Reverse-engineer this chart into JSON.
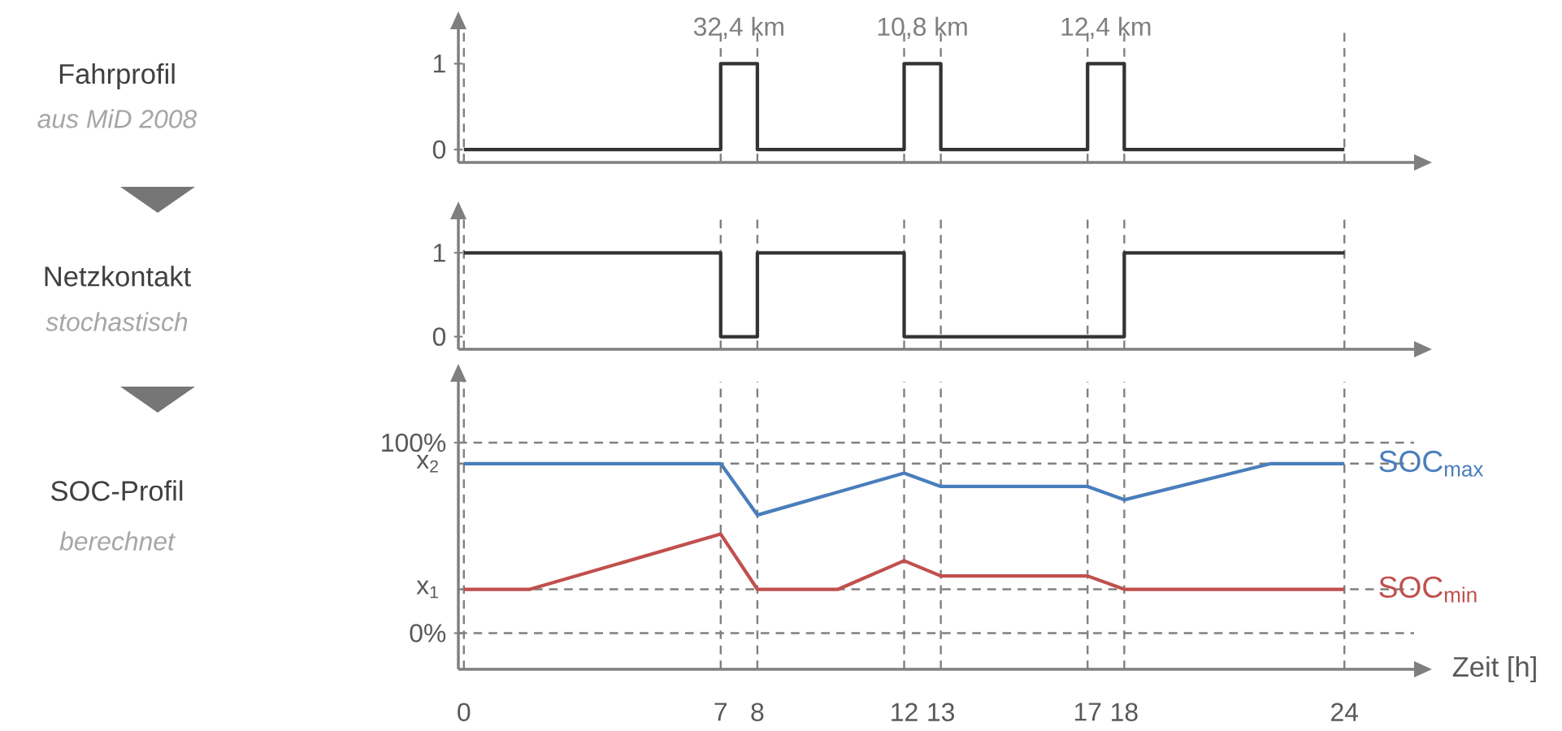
{
  "chart_data": [
    {
      "type": "step",
      "x": [
        0,
        7,
        8,
        12,
        13,
        17,
        18,
        24
      ],
      "xlim": [
        -0.15,
        25.9
      ],
      "ylim": [
        -0.15,
        1.4
      ],
      "yticks": [
        0,
        1
      ],
      "tick_labels": "y",
      "series": [
        {
          "color": "#333333",
          "values": [
            0,
            1,
            0,
            1,
            0,
            1,
            0,
            0
          ]
        }
      ],
      "annotations": [
        "Fahrprofil",
        "aus MiD 2008",
        {
          "text": "32,4 km",
          "x": 7.5,
          "y": 1
        },
        {
          "text": "10,8 km",
          "x": 12.5,
          "y": 1
        },
        {
          "text": "12,4 km",
          "x": 17.5,
          "y": 1
        }
      ],
      "ref_lines": [
        {
          "axis": "x",
          "value": 0,
          "color": "#808080",
          "line_style": "dashed"
        },
        {
          "axis": "x",
          "value": 7,
          "color": "#808080",
          "line_style": "dashed"
        },
        {
          "axis": "x",
          "value": 8,
          "color": "#808080",
          "line_style": "dashed"
        },
        {
          "axis": "x",
          "value": 12,
          "color": "#808080",
          "line_style": "dashed"
        },
        {
          "axis": "x",
          "value": 13,
          "color": "#808080",
          "line_style": "dashed"
        },
        {
          "axis": "x",
          "value": 17,
          "color": "#808080",
          "line_style": "dashed"
        },
        {
          "axis": "x",
          "value": 18,
          "color": "#808080",
          "line_style": "dashed"
        },
        {
          "axis": "x",
          "value": 24,
          "color": "#808080",
          "line_style": "dashed"
        }
      ]
    },
    {
      "type": "step",
      "annotations": [
        "Netzkontakt",
        "stochastisch"
      ],
      "x": [
        0,
        7,
        8,
        12,
        18,
        24
      ],
      "xlim": [
        -0.15,
        25.9
      ],
      "ylim": [
        -0.15,
        1.4
      ],
      "yticks": [
        0,
        1
      ],
      "tick_labels": "y",
      "series": [
        {
          "color": "#333333",
          "values": [
            1,
            0,
            1,
            0,
            1,
            1
          ]
        }
      ],
      "ref_lines": [
        {
          "axis": "x",
          "value": 0,
          "color": "#808080",
          "line_style": "dashed"
        },
        {
          "axis": "x",
          "value": 7,
          "color": "#808080",
          "line_style": "dashed"
        },
        {
          "axis": "x",
          "value": 8,
          "color": "#808080",
          "line_style": "dashed"
        },
        {
          "axis": "x",
          "value": 12,
          "color": "#808080",
          "line_style": "dashed"
        },
        {
          "axis": "x",
          "value": 13,
          "color": "#808080",
          "line_style": "dashed"
        },
        {
          "axis": "x",
          "value": 17,
          "color": "#808080",
          "line_style": "dashed"
        },
        {
          "axis": "x",
          "value": 18,
          "color": "#808080",
          "line_style": "dashed"
        },
        {
          "axis": "x",
          "value": 24,
          "color": "#808080",
          "line_style": "dashed"
        }
      ]
    },
    {
      "type": "line",
      "annotations": [
        "SOC-Profil",
        "berechnet"
      ],
      "xlabel": "Zeit [h]",
      "xlim": [
        -0.15,
        25.9
      ],
      "xticks": [
        0,
        7,
        8,
        12,
        13,
        17,
        18,
        24
      ],
      "ylim": [
        -19,
        132
      ],
      "yticks": [
        {
          "value": 0,
          "label": "0%"
        },
        {
          "value": 100,
          "label": "100%"
        }
      ],
      "series": [
        {
          "name": "SOC$_{max}$",
          "color": "#4a7ebb",
          "x": [
            0,
            7,
            8,
            12,
            13,
            17,
            18,
            22,
            24
          ],
          "values": [
            89,
            89,
            62,
            84,
            77,
            77,
            70,
            89,
            89
          ]
        },
        {
          "name": "SOC$_{min}$",
          "color": "#c0504d",
          "x": [
            0,
            1.8,
            7,
            8,
            10.2,
            12,
            13,
            17,
            18,
            24
          ],
          "values": [
            23,
            23,
            52,
            23,
            23,
            38,
            30,
            30,
            23,
            23
          ]
        }
      ],
      "ref_lines": [
        {
          "axis": "x",
          "value": 0,
          "color": "#808080",
          "line_style": "dashed"
        },
        {
          "axis": "x",
          "value": 7,
          "color": "#808080",
          "line_style": "dashed"
        },
        {
          "axis": "x",
          "value": 8,
          "color": "#808080",
          "line_style": "dashed"
        },
        {
          "axis": "x",
          "value": 12,
          "color": "#808080",
          "line_style": "dashed"
        },
        {
          "axis": "x",
          "value": 13,
          "color": "#808080",
          "line_style": "dashed"
        },
        {
          "axis": "x",
          "value": 17,
          "color": "#808080",
          "line_style": "dashed"
        },
        {
          "axis": "x",
          "value": 18,
          "color": "#808080",
          "line_style": "dashed"
        },
        {
          "axis": "x",
          "value": 24,
          "color": "#808080",
          "line_style": "dashed"
        },
        {
          "axis": "y",
          "value": 0,
          "color": "#808080",
          "line_style": "dashed"
        },
        {
          "axis": "y",
          "value": 23,
          "color": "#808080",
          "line_style": "dashed",
          "label": "x$_{1}$"
        },
        {
          "axis": "y",
          "value": 89,
          "color": "#808080",
          "line_style": "dashed",
          "label": "x$_{2}$"
        },
        {
          "axis": "y",
          "value": 100,
          "color": "#808080",
          "line_style": "dashed"
        }
      ]
    }
  ]
}
